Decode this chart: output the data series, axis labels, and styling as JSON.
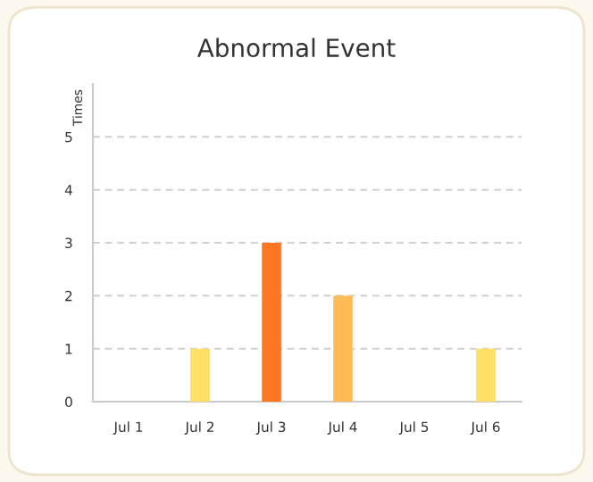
{
  "chart_data": {
    "type": "bar",
    "title": "Abnormal Event",
    "ylabel": "Times",
    "categories": [
      "Jul 1",
      "Jul 2",
      "Jul 3",
      "Jul 4",
      "Jul 5",
      "Jul 6"
    ],
    "values": [
      0,
      1,
      3,
      2,
      0,
      1
    ],
    "colors": [
      "#ffe066",
      "#ffe066",
      "#ff7722",
      "#ffbb55",
      "#ffe066",
      "#ffe066"
    ],
    "ylim": [
      0,
      6
    ],
    "yticks": [
      0,
      1,
      2,
      3,
      4,
      5
    ],
    "grid": "y",
    "legend": false
  }
}
